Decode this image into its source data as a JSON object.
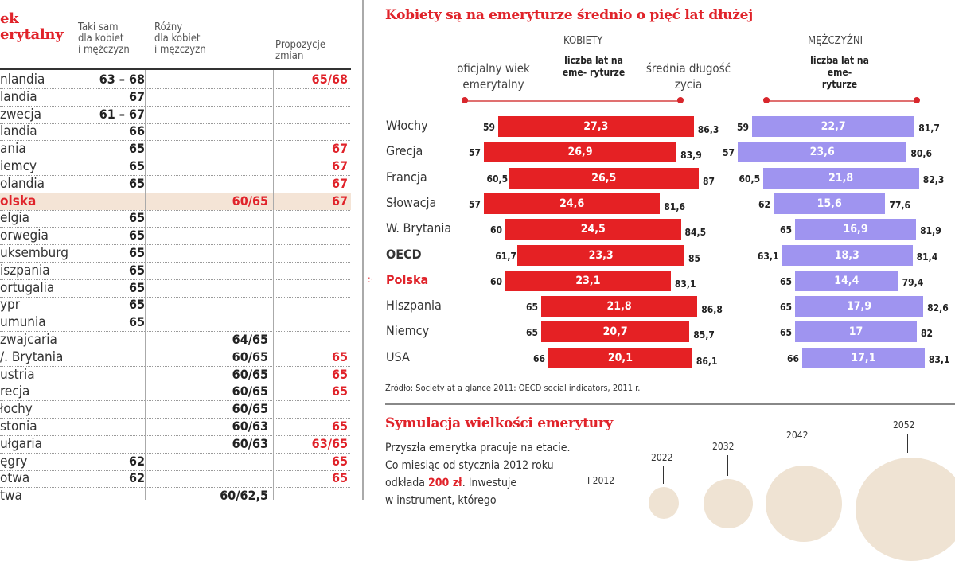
{
  "left_table": {
    "title_lines": [
      "ek",
      "erytalny"
    ],
    "headers": {
      "same": [
        "Taki sam",
        "dla kobiet",
        "i mężczyzn"
      ],
      "different": [
        "Różny",
        "dla kobiet",
        "i mężczyzn"
      ],
      "proposals": [
        "Propozycje",
        "zmian"
      ]
    },
    "rows": [
      {
        "country": "nlandia",
        "same": "63 – 68",
        "different": "",
        "proposal": "65/68"
      },
      {
        "country": "landia",
        "same": "67",
        "different": "",
        "proposal": ""
      },
      {
        "country": "zwecja",
        "same": "61 – 67",
        "different": "",
        "proposal": ""
      },
      {
        "country": "landia",
        "same": "66",
        "different": "",
        "proposal": ""
      },
      {
        "country": "ania",
        "same": "65",
        "different": "",
        "proposal": "67"
      },
      {
        "country": "iemcy",
        "same": "65",
        "different": "",
        "proposal": "67"
      },
      {
        "country": "olandia",
        "same": "65",
        "different": "",
        "proposal": "67"
      },
      {
        "country": "olska",
        "same": "",
        "different": "60/65",
        "proposal": "67",
        "highlight": true
      },
      {
        "country": "elgia",
        "same": "65",
        "different": "",
        "proposal": ""
      },
      {
        "country": "orwegia",
        "same": "65",
        "different": "",
        "proposal": ""
      },
      {
        "country": "uksemburg",
        "same": "65",
        "different": "",
        "proposal": ""
      },
      {
        "country": "iszpania",
        "same": "65",
        "different": "",
        "proposal": ""
      },
      {
        "country": "ortugalia",
        "same": "65",
        "different": "",
        "proposal": ""
      },
      {
        "country": "ypr",
        "same": "65",
        "different": "",
        "proposal": ""
      },
      {
        "country": "umunia",
        "same": "65",
        "different": "",
        "proposal": ""
      },
      {
        "country": "zwajcaria",
        "same": "",
        "different": "64/65",
        "proposal": ""
      },
      {
        "country": "/. Brytania",
        "same": "",
        "different": "60/65",
        "proposal": "65"
      },
      {
        "country": "ustria",
        "same": "",
        "different": "60/65",
        "proposal": "65"
      },
      {
        "country": "recja",
        "same": "",
        "different": "60/65",
        "proposal": "65"
      },
      {
        "country": "łochy",
        "same": "",
        "different": "60/65",
        "proposal": ""
      },
      {
        "country": "stonia",
        "same": "",
        "different": "60/63",
        "proposal": "65"
      },
      {
        "country": "ułgaria",
        "same": "",
        "different": "60/63",
        "proposal": "63/65"
      },
      {
        "country": "ęgry",
        "same": "62",
        "different": "",
        "proposal": "65"
      },
      {
        "country": "otwa",
        "same": "62",
        "different": "",
        "proposal": "65"
      },
      {
        "country": "twa",
        "same": "",
        "different": "60/62,5",
        "proposal": ""
      }
    ]
  },
  "chart_data": {
    "type": "bar",
    "title": "Kobiety są na emeryturze średnio o pięć lat dłużej",
    "groups": {
      "women": "KOBIETY",
      "men": "MĘŻCZYŹNI"
    },
    "column_labels": {
      "retirement_age": "oficjalny wiek emerytalny",
      "years_retired": "liczba lat na eme- ryturze",
      "life_expectancy": "średnia długość zycia",
      "men_years_retired": "liczba lat na eme- ryturze"
    },
    "colors": {
      "women": "#e52124",
      "men": "#9f94f0",
      "highlight": "#e0232a"
    },
    "categories": [
      "Włochy",
      "Grecja",
      "Francja",
      "Słowacja",
      "W. Brytania",
      "OECD",
      "Polska",
      "Hiszpania",
      "Niemcy",
      "USA"
    ],
    "highlight": "Polska",
    "bold": [
      "OECD",
      "Polska"
    ],
    "series": [
      {
        "name": "KOBIETY",
        "retirement_age": [
          "59",
          "57",
          "60,5",
          "57",
          "60",
          "61,7",
          "60",
          "65",
          "65",
          "66"
        ],
        "years_retired": [
          "27,3",
          "26,9",
          "26,5",
          "24,6",
          "24,5",
          "23,3",
          "23,1",
          "21,8",
          "20,7",
          "20,1"
        ],
        "life_expectancy": [
          "86,3",
          "83,9",
          "87",
          "81,6",
          "84,5",
          "85",
          "83,1",
          "86,8",
          "85,7",
          "86,1"
        ]
      },
      {
        "name": "MĘŻCZYŹNI",
        "retirement_age": [
          "59",
          "57",
          "60,5",
          "62",
          "65",
          "63,1",
          "65",
          "65",
          "65",
          "66"
        ],
        "years_retired": [
          "22,7",
          "23,6",
          "21,8",
          "15,6",
          "16,9",
          "18,3",
          "14,4",
          "17,9",
          "17",
          "17,1"
        ],
        "life_expectancy": [
          "81,7",
          "80,6",
          "82,3",
          "77,6",
          "81,9",
          "81,4",
          "79,4",
          "82,6",
          "82",
          "83,1"
        ]
      }
    ],
    "source": "Źródło: Society at a glance 2011: OECD social indicators, 2011 r."
  },
  "simulation": {
    "title": "Symulacja wielkości emerytury",
    "text_lines": [
      "Przyszła emerytka pracuje na etacie.",
      "Co miesiąc od stycznia 2012 roku"
    ],
    "line3_pre": "odkłada ",
    "line3_amount": "200 zł",
    "line3_post": ". Inwestuje",
    "line4": "w instrument, którego",
    "years": [
      "I 2012",
      "2022",
      "2032",
      "2042",
      "2052"
    ]
  }
}
